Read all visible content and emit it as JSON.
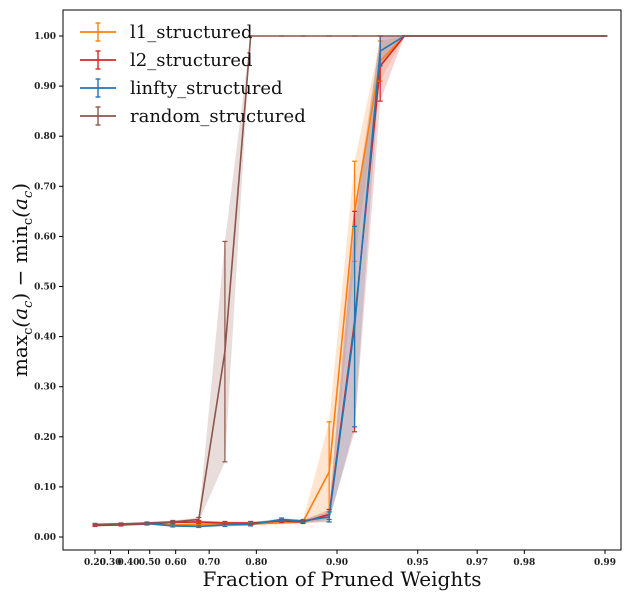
{
  "chart_data": {
    "type": "line",
    "xlabel": "Fraction of Pruned Weights",
    "ylabel": "max_c(a_c) − min_c(a_c)",
    "ylabel_parts": {
      "f1": "max",
      "s1": "c",
      "a1": "(a",
      "s2": "c",
      "m": ") − min",
      "s3": "c",
      "a2": "(a",
      "s4": "c",
      "e": ")"
    },
    "x_tick_labels": [
      "0.20",
      "0.30",
      "0.40",
      "0.50",
      "0.60",
      "0.70",
      "0.80",
      "0.90",
      "0.95",
      "0.97",
      "0.98",
      "0.99"
    ],
    "y_tick_labels": [
      "0.00",
      "0.10",
      "0.20",
      "0.30",
      "0.40",
      "0.50",
      "0.60",
      "0.70",
      "0.80",
      "0.90",
      "1.00"
    ],
    "ylim": [
      0,
      1
    ],
    "grid": false,
    "legend_position": "top-left",
    "series": [
      {
        "name": "l1_structured",
        "color": "#ff7f0e",
        "points": [
          [
            0.2,
            0.024,
            0.002
          ],
          [
            0.36,
            0.025,
            0.002
          ],
          [
            0.488,
            0.026,
            0.002
          ],
          [
            0.59,
            0.024,
            0.002
          ],
          [
            0.672,
            0.025,
            0.003
          ],
          [
            0.738,
            0.027,
            0.003
          ],
          [
            0.79,
            0.026,
            0.003
          ],
          [
            0.866,
            0.03,
            0.003
          ],
          [
            0.893,
            0.13,
            0.1
          ],
          [
            0.914,
            0.65,
            0.1
          ],
          [
            0.931,
            0.95,
            0.04
          ],
          [
            0.944,
            1.0,
            0.0
          ],
          [
            0.99,
            1.0,
            0.0
          ]
        ]
      },
      {
        "name": "l2_structured",
        "color": "#d62728",
        "points": [
          [
            0.2,
            0.023,
            0.002
          ],
          [
            0.36,
            0.024,
            0.002
          ],
          [
            0.488,
            0.026,
            0.002
          ],
          [
            0.59,
            0.029,
            0.002
          ],
          [
            0.672,
            0.03,
            0.003
          ],
          [
            0.738,
            0.028,
            0.003
          ],
          [
            0.79,
            0.028,
            0.003
          ],
          [
            0.839,
            0.032,
            0.003
          ],
          [
            0.866,
            0.03,
            0.003
          ],
          [
            0.893,
            0.045,
            0.01
          ],
          [
            0.914,
            0.43,
            0.22
          ],
          [
            0.931,
            0.94,
            0.07
          ],
          [
            0.944,
            1.0,
            0.0
          ],
          [
            0.99,
            1.0,
            0.0
          ]
        ]
      },
      {
        "name": "linfty_structured",
        "color": "#1f77b4",
        "points": [
          [
            0.2,
            0.025,
            0.002
          ],
          [
            0.36,
            0.026,
            0.002
          ],
          [
            0.488,
            0.027,
            0.002
          ],
          [
            0.59,
            0.022,
            0.002
          ],
          [
            0.672,
            0.021,
            0.002
          ],
          [
            0.738,
            0.024,
            0.003
          ],
          [
            0.79,
            0.025,
            0.003
          ],
          [
            0.839,
            0.035,
            0.003
          ],
          [
            0.866,
            0.032,
            0.003
          ],
          [
            0.893,
            0.04,
            0.01
          ],
          [
            0.914,
            0.42,
            0.2
          ],
          [
            0.931,
            0.97,
            0.03
          ],
          [
            0.944,
            1.0,
            0.0
          ],
          [
            0.99,
            1.0,
            0.0
          ]
        ]
      },
      {
        "name": "random_structured",
        "color": "#8c564b",
        "points": [
          [
            0.2,
            0.025,
            0.002
          ],
          [
            0.36,
            0.026,
            0.002
          ],
          [
            0.488,
            0.028,
            0.002
          ],
          [
            0.59,
            0.03,
            0.003
          ],
          [
            0.672,
            0.035,
            0.004
          ],
          [
            0.738,
            0.37,
            0.22
          ],
          [
            0.79,
            1.0,
            0.0
          ],
          [
            0.839,
            1.0,
            0.0
          ],
          [
            0.866,
            1.0,
            0.0
          ],
          [
            0.893,
            1.0,
            0.0
          ],
          [
            0.914,
            1.0,
            0.0
          ],
          [
            0.931,
            1.0,
            0.0
          ],
          [
            0.944,
            1.0,
            0.0
          ],
          [
            0.99,
            1.0,
            0.0
          ]
        ]
      }
    ]
  }
}
